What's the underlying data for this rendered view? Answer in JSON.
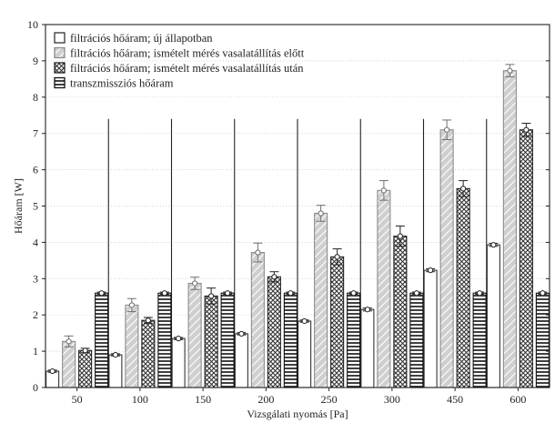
{
  "chart_data": {
    "type": "bar",
    "xlabel": "Vizsgálati nyomás [Pa]",
    "ylabel": "Hőáram [W]",
    "ylim": [
      0,
      10
    ],
    "yticks": [
      0,
      1,
      2,
      3,
      4,
      5,
      6,
      7,
      8,
      9,
      10
    ],
    "grid": true,
    "legend_position": "top-left",
    "categories": [
      "50",
      "100",
      "150",
      "200",
      "250",
      "300",
      "450",
      "600"
    ],
    "series": [
      {
        "name": "filtrációs hőáram; új állapotban",
        "pattern": "plain",
        "color": "#ffffff",
        "values": [
          0.45,
          0.9,
          1.35,
          1.48,
          1.83,
          2.15,
          3.23,
          3.93
        ],
        "errors": [
          0.03,
          0.03,
          0.03,
          0.03,
          0.03,
          0.04,
          0.04,
          0.04
        ]
      },
      {
        "name": "filtrációs hőáram; ismételt mérés vasalatállítás előtt",
        "pattern": "light-hatch",
        "color": "#b5b5b5",
        "values": [
          1.27,
          2.27,
          2.87,
          3.72,
          4.8,
          5.43,
          7.1,
          8.73
        ],
        "errors": [
          0.15,
          0.18,
          0.17,
          0.26,
          0.22,
          0.27,
          0.27,
          0.17
        ]
      },
      {
        "name": "filtrációs hőáram; ismételt mérés vasalatállítás után",
        "pattern": "dark-crosshatch",
        "color": "#444444",
        "values": [
          1.02,
          1.85,
          2.52,
          3.05,
          3.6,
          4.17,
          5.48,
          7.1
        ],
        "errors": [
          0.06,
          0.08,
          0.22,
          0.14,
          0.22,
          0.28,
          0.22,
          0.18
        ]
      },
      {
        "name": "transzmissziós hőáram",
        "pattern": "horizontal-lines",
        "color": "#222222",
        "values": [
          2.6,
          2.6,
          2.6,
          2.6,
          2.6,
          2.6,
          2.6,
          2.6
        ],
        "errors": [
          0.03,
          0.03,
          0.03,
          0.03,
          0.03,
          0.03,
          0.03,
          0.03
        ]
      }
    ]
  }
}
